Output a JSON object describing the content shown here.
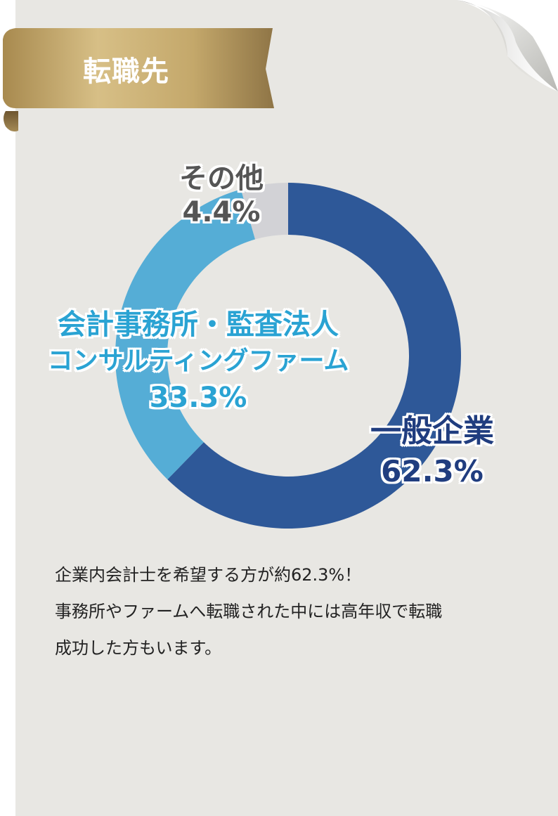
{
  "header": {
    "title": "転職先"
  },
  "colors": {
    "card": "#e8e7e3",
    "ribbon_gold": "#c6ab6e",
    "general": "#2e5898",
    "accounting": "#55add6",
    "other": "#d2d2d6"
  },
  "chart_data": {
    "type": "pie",
    "donut": true,
    "slices": [
      {
        "label": "一般企業",
        "value": 62.3,
        "pct_label": "62.3%"
      },
      {
        "label_lines": [
          "会計事務所・監査法人",
          "コンサルティングファーム"
        ],
        "value": 33.3,
        "pct_label": "33.3%"
      },
      {
        "label": "その他",
        "value": 4.4,
        "pct_label": "4.4%"
      }
    ]
  },
  "description": {
    "lines": [
      "企業内会計士を希望する方が約62.3%！",
      "事務所やファームへ転職された中には高年収で転職",
      "成功した方もいます。"
    ]
  }
}
